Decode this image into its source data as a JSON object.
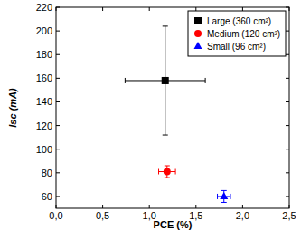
{
  "chart_data": {
    "type": "scatter",
    "x_label": "PCE (%)",
    "y_label": "Isc (mA)",
    "xlim": [
      0,
      2.5
    ],
    "xticks": [
      {
        "value": 0,
        "label": "0,0"
      },
      {
        "value": 0.5,
        "label": "0,5"
      },
      {
        "value": 1,
        "label": "1,0"
      },
      {
        "value": 1.5,
        "label": "1,5"
      },
      {
        "value": 2,
        "label": "2,0"
      },
      {
        "value": 2.5,
        "label": "2,5"
      }
    ],
    "ylim": [
      50,
      220
    ],
    "yticks": [
      60,
      80,
      100,
      120,
      140,
      160,
      180,
      200,
      220
    ],
    "grid": false,
    "legend": "top-right",
    "series": [
      {
        "name": "Large (360 cm²)",
        "color": "#000000",
        "marker": "square",
        "x": [
          1.17
        ],
        "x_err": [
          0.43
        ],
        "values": [
          158
        ],
        "y_err": [
          46
        ]
      },
      {
        "name": "Medium (120 cm²)",
        "color": "#ff0000",
        "marker": "circle",
        "x": [
          1.19
        ],
        "x_err": [
          0.09
        ],
        "values": [
          81
        ],
        "y_err": [
          5
        ]
      },
      {
        "name": "Small (96 cm²)",
        "color": "#0000ff",
        "marker": "triangle",
        "x": [
          1.8
        ],
        "x_err": [
          0.07
        ],
        "values": [
          60
        ],
        "y_err": [
          5
        ]
      }
    ]
  }
}
